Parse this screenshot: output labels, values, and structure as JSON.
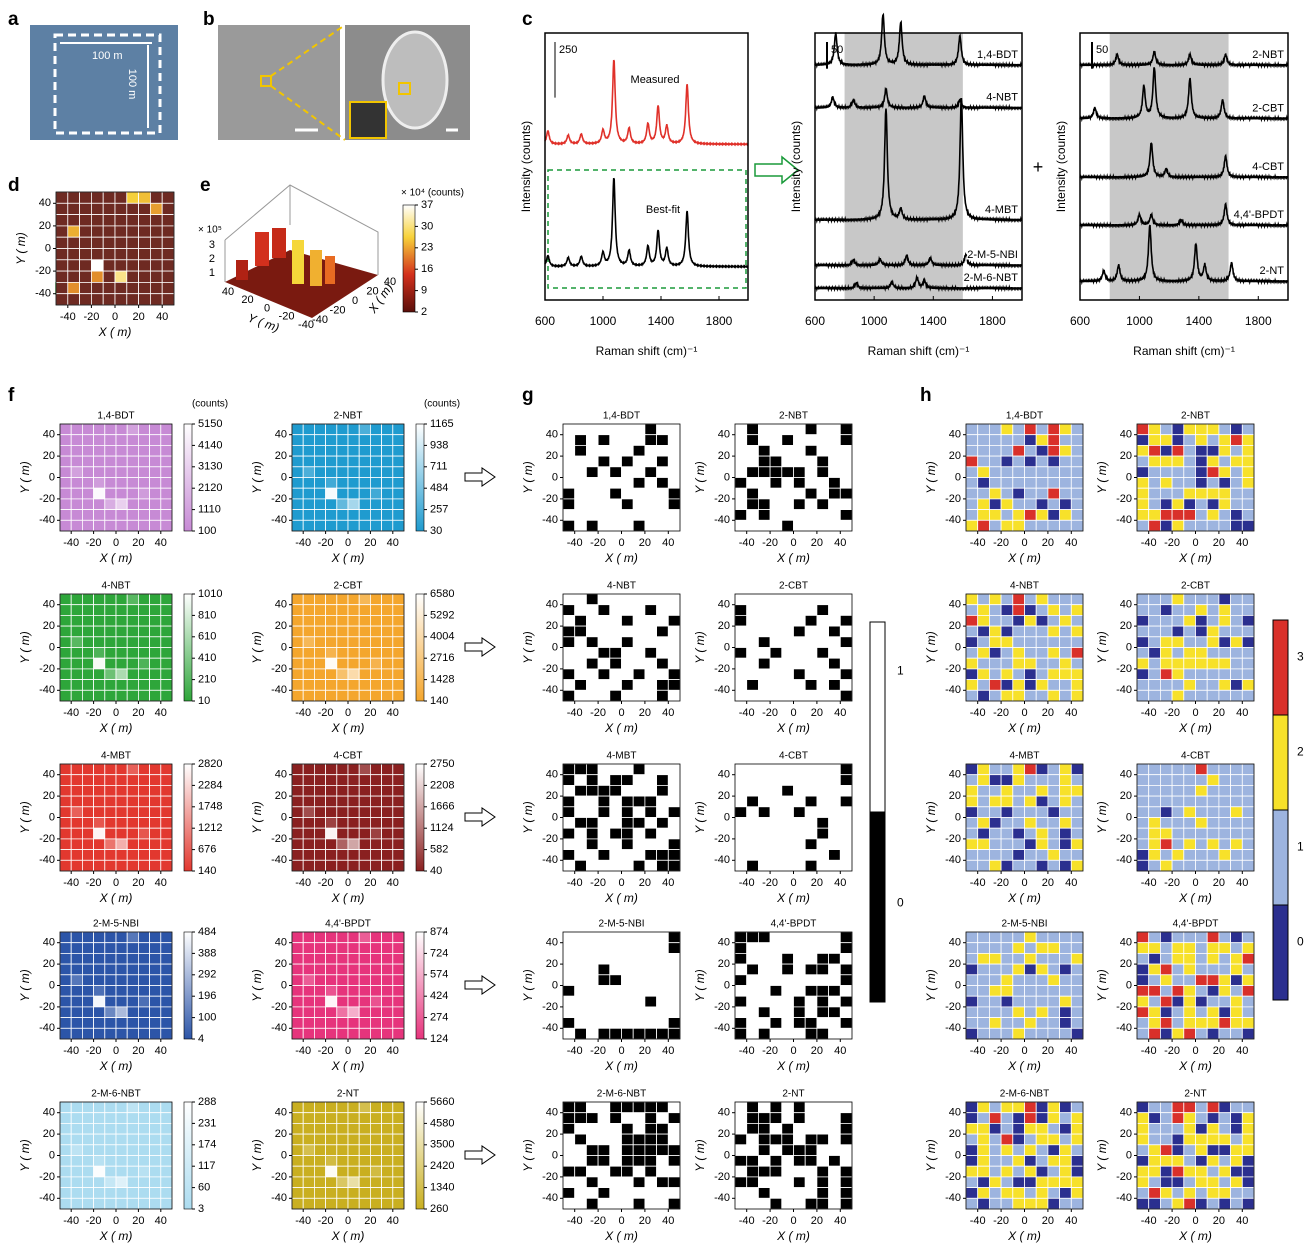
{
  "axes": {
    "ticks": [
      -40,
      -20,
      0,
      20,
      40
    ],
    "lim": [
      -50,
      50
    ],
    "xlabel": "X ( m)",
    "ylabel": "Y ( m)"
  },
  "a": {
    "label": "a",
    "scale_labels": [
      "100  m",
      "100  m"
    ]
  },
  "b": {
    "label": "b"
  },
  "c": {
    "label": "c",
    "xlabel": "Raman shift (cm)⁻¹",
    "ylabel": "Intensity (counts)",
    "xlim": [
      600,
      2000
    ],
    "xticks": [
      600,
      1000,
      1400,
      1800
    ],
    "plus": "+",
    "plots": [
      {
        "ylim": [
          0,
          1200
        ],
        "scale_bar": 250,
        "spectra": [
          {
            "name": "Measured",
            "color": "#e0312a",
            "offset": 700,
            "peaks": [
              [
                620,
                60
              ],
              [
                760,
                40
              ],
              [
                850,
                45
              ],
              [
                1000,
                60
              ],
              [
                1075,
                380
              ],
              [
                1180,
                70
              ],
              [
                1310,
                90
              ],
              [
                1380,
                170
              ],
              [
                1440,
                80
              ],
              [
                1580,
                270
              ]
            ]
          },
          {
            "name": "Best-fit",
            "color": "#000000",
            "offset": 150,
            "peaks": [
              [
                620,
                50
              ],
              [
                760,
                40
              ],
              [
                850,
                45
              ],
              [
                1000,
                60
              ],
              [
                1075,
                400
              ],
              [
                1180,
                70
              ],
              [
                1310,
                90
              ],
              [
                1380,
                160
              ],
              [
                1440,
                80
              ],
              [
                1580,
                250
              ]
            ]
          }
        ]
      },
      {
        "ylim": [
          0,
          500
        ],
        "scale_bar": 50,
        "band": [
          800,
          1600
        ],
        "spectra": [
          {
            "name": "1,4-BDT",
            "color": "#000000",
            "offset": 440,
            "peaks": [
              [
                740,
                60
              ],
              [
                1060,
                95
              ],
              [
                1180,
                80
              ],
              [
                1580,
                55
              ]
            ]
          },
          {
            "name": "4-NBT",
            "color": "#000000",
            "offset": 360,
            "peaks": [
              [
                720,
                20
              ],
              [
                860,
                15
              ],
              [
                1080,
                35
              ],
              [
                1340,
                22
              ],
              [
                1580,
                15
              ]
            ]
          },
          {
            "name": "4-MBT",
            "color": "#000000",
            "offset": 150,
            "peaks": [
              [
                1080,
                210
              ],
              [
                1180,
                20
              ],
              [
                1590,
                230
              ]
            ]
          },
          {
            "name": "2-M-5-NBI",
            "color": "#000000",
            "offset": 65,
            "peaks": [
              [
                860,
                10
              ],
              [
                1040,
                12
              ],
              [
                1220,
                18
              ],
              [
                1380,
                14
              ],
              [
                1620,
                20
              ]
            ]
          },
          {
            "name": "2-M-6-NBT",
            "color": "#000000",
            "offset": 22,
            "peaks": [
              [
                880,
                10
              ],
              [
                1120,
                12
              ],
              [
                1290,
                20
              ],
              [
                1340,
                14
              ]
            ]
          }
        ]
      },
      {
        "ylim": [
          0,
          500
        ],
        "scale_bar": 50,
        "band": [
          800,
          1600
        ],
        "spectra": [
          {
            "name": "2-NBT",
            "color": "#000000",
            "offset": 440,
            "peaks": [
              [
                850,
                20
              ],
              [
                1100,
                25
              ],
              [
                1340,
                20
              ],
              [
                1580,
                20
              ]
            ]
          },
          {
            "name": "2-CBT",
            "color": "#000000",
            "offset": 340,
            "peaks": [
              [
                700,
                20
              ],
              [
                1030,
                60
              ],
              [
                1100,
                95
              ],
              [
                1340,
                75
              ],
              [
                1560,
                35
              ]
            ]
          },
          {
            "name": "4-CBT",
            "color": "#000000",
            "offset": 230,
            "peaks": [
              [
                1080,
                65
              ],
              [
                1180,
                15
              ],
              [
                1580,
                40
              ]
            ]
          },
          {
            "name": "4,4'-BPDT",
            "color": "#000000",
            "offset": 140,
            "peaks": [
              [
                1000,
                20
              ],
              [
                1080,
                20
              ],
              [
                1280,
                10
              ],
              [
                1580,
                40
              ]
            ]
          },
          {
            "name": "2-NT",
            "color": "#000000",
            "offset": 35,
            "peaks": [
              [
                760,
                20
              ],
              [
                860,
                30
              ],
              [
                1070,
                105
              ],
              [
                1380,
                70
              ],
              [
                1440,
                30
              ],
              [
                1620,
                35
              ]
            ]
          }
        ]
      }
    ]
  },
  "d": {
    "label": "d",
    "hot_cells": [
      [
        3,
        6,
        1
      ],
      [
        5,
        7,
        0.7
      ],
      [
        6,
        0,
        0.5
      ],
      [
        7,
        0,
        0.45
      ],
      [
        1,
        3,
        0.4
      ],
      [
        8,
        1,
        0.35
      ],
      [
        3,
        7,
        0.3
      ],
      [
        1,
        8,
        0.3
      ]
    ]
  },
  "e": {
    "label": "e",
    "colorbar_title": "× 10⁴ (counts)",
    "cbar_ticks": [
      37,
      30,
      23,
      16,
      9,
      2
    ],
    "z_label": "× 10⁵",
    "zticks": [
      3,
      2,
      1
    ],
    "yticks": [
      40,
      20,
      0,
      -20,
      -40
    ],
    "xticks": [
      40,
      20,
      0,
      -20,
      -40
    ]
  },
  "f": {
    "label": "f",
    "cbar_unit": "(counts)",
    "hot_cells": [
      [
        3,
        6,
        0.95
      ],
      [
        5,
        7,
        0.6
      ],
      [
        4,
        7,
        0.3
      ],
      [
        1,
        4,
        0.2
      ],
      [
        6,
        0,
        0.2
      ],
      [
        3,
        5,
        0.15
      ],
      [
        7,
        6,
        0.15
      ]
    ],
    "maps": [
      {
        "name": "1,4-BDT",
        "color": "#c78ad5",
        "cbar_ticks": [
          5150,
          4140,
          3130,
          2120,
          1110,
          100
        ]
      },
      {
        "name": "2-NBT",
        "color": "#1f9bcf",
        "cbar_ticks": [
          1165,
          938,
          711,
          484,
          257,
          30
        ]
      },
      {
        "name": "4-NBT",
        "color": "#2ea63a",
        "cbar_ticks": [
          1010,
          810,
          610,
          410,
          210,
          10
        ]
      },
      {
        "name": "2-CBT",
        "color": "#f4a62d",
        "cbar_ticks": [
          6580,
          5292,
          4004,
          2716,
          1428,
          140
        ]
      },
      {
        "name": "4-MBT",
        "color": "#e2382f",
        "cbar_ticks": [
          2820,
          2284,
          1748,
          1212,
          676,
          140
        ]
      },
      {
        "name": "4-CBT",
        "color": "#8a2020",
        "cbar_ticks": [
          2750,
          2208,
          1666,
          1124,
          582,
          40
        ]
      },
      {
        "name": "2-M-5-NBI",
        "color": "#2c55a8",
        "cbar_ticks": [
          484,
          388,
          292,
          196,
          100,
          4
        ]
      },
      {
        "name": "4,4'-BPDT",
        "color": "#e6347c",
        "cbar_ticks": [
          874,
          724,
          574,
          424,
          274,
          124
        ]
      },
      {
        "name": "2-M-6-NBT",
        "color": "#acdcf0",
        "cbar_ticks": [
          288,
          231,
          174,
          117,
          60,
          3
        ]
      },
      {
        "name": "2-NT",
        "color": "#c9af20",
        "cbar_ticks": [
          5660,
          4580,
          3500,
          2420,
          1340,
          260
        ]
      }
    ]
  },
  "g": {
    "label": "g",
    "cbar_ticks": [
      1,
      0
    ],
    "colors": [
      "#000000",
      "#ffffff"
    ],
    "maps": [
      {
        "name": "1,4-BDT",
        "rows": [
          "1111111011",
          "1010111001",
          "1011110111",
          "1110101101",
          "1101011011",
          "1111110101",
          "0111011110",
          "0111101110",
          "1111111111",
          "0101110111"
        ]
      },
      {
        "name": "2-NBT",
        "rows": [
          "1011110110",
          "1011011110",
          "1101110111",
          "1100111011",
          "1000001011",
          "0110101101",
          "1011110100",
          "1001101011",
          "0101111110",
          "1111011111"
        ]
      },
      {
        "name": "4-NBT",
        "rows": [
          "1101111111",
          "0110111011",
          "1011101110",
          "0011111101",
          "0101101111",
          "1110011011",
          "1101011101",
          "0110110110",
          "1011101100",
          "0111011101"
        ]
      },
      {
        "name": "2-CBT",
        "rows": [
          "1111111111",
          "0111111011",
          "0111110110",
          "1111101101",
          "1101111110",
          "0110111011",
          "1101111101",
          "1111101110",
          "1011110101",
          "1111111110"
        ]
      },
      {
        "name": "4-MBT",
        "rows": [
          "0001110111",
          "0101001101",
          "1000011101",
          "0110100011",
          "0110101010",
          "1001100101",
          "0101001011",
          "1101101110",
          "0110111000",
          "1011110100"
        ]
      },
      {
        "name": "4-CBT",
        "rows": [
          "1111111110",
          "1111111110",
          "1111011111",
          "1011110110",
          "0101101111",
          "1111111011",
          "1111111011",
          "1111110111",
          "1111111101",
          "1011110111"
        ]
      },
      {
        "name": "2-M-5-NBI",
        "rows": [
          "1111111110",
          "1111111110",
          "1111111111",
          "1110111111",
          "1110011111",
          "0111111111",
          "1111111011",
          "1111111111",
          "0111111110",
          "1010000000"
        ]
      },
      {
        "name": "4,4'-BPDT",
        "rows": [
          "0001111110",
          "0111111110",
          "0111011001",
          "1011010010",
          "0111111110",
          "1110110001",
          "0111101010",
          "1101101001",
          "0110100110",
          "0101110011"
        ]
      },
      {
        "name": "2-M-6-NBT",
        "rows": [
          "0011000001",
          "0001011010",
          "0111101001",
          "1011100001",
          "1100100000",
          "1100100010",
          "0011001011",
          "1101110100",
          "0110111111",
          "1101110110"
        ]
      },
      {
        "name": "2-NT",
        "rows": [
          "1010101111",
          "1000101110",
          "1001011110",
          "0100010010",
          "1101000111",
          "0010100101",
          "1000111010",
          "0011101010",
          "1101111010",
          "1110110010"
        ]
      }
    ]
  },
  "h": {
    "label": "h",
    "cbar_ticks": [
      3,
      2,
      1,
      0
    ],
    "colors": [
      "#2b2f8f",
      "#9db4df",
      "#f7e12a",
      "#d9302a"
    ],
    "maps": [
      {
        "name": "1,4-BDT",
        "rows": [
          "1112131321",
          "1111102311",
          "1111310321",
          "3110101011",
          "1211111111",
          "1011111111",
          "1121011311",
          "1202110101",
          "1221232021",
          "2312211111"
        ]
      },
      {
        "name": "2-NBT",
        "rows": [
          "3210222101",
          "0220121232",
          "2303100212",
          "1222102122",
          "0111103212",
          "2121101012",
          "2111222211",
          "2102010211",
          "2233312101",
          "1302111100"
        ]
      },
      {
        "name": "4-NBT",
        "rows": [
          "2121312111",
          "1210301212",
          "3211020121",
          "1020111212",
          "0122111111",
          "1201211213",
          "2111221121",
          "0212101222",
          "2130202112",
          "1012211212"
        ]
      },
      {
        "name": "2-CBT",
        "rows": [
          "1112111011",
          "1101121211",
          "0111201210",
          "1110102111",
          "0122112020",
          "1021221111",
          "2122222211",
          "0132111111",
          "1111211202",
          "1112111111"
        ]
      },
      {
        "name": "4-MBT",
        "rows": [
          "0211230120",
          "1200211121",
          "2112112122",
          "2122120121",
          "0110111011",
          "1201121121",
          "1011012101",
          "2211102102",
          "1111011211",
          "1120110102"
        ]
      },
      {
        "name": "4-CBT",
        "rows": [
          "1111131111",
          "1111112111",
          "1111121111",
          "1111111111",
          "1101211121",
          "1211121111",
          "1221111111",
          "1231212121",
          "0212111211",
          "0121111111"
        ]
      },
      {
        "name": "2-M-5-NBI",
        "rows": [
          "1111121111",
          "1111212211",
          "1221121112",
          "0111202101",
          "1112111211",
          "1122111111",
          "0110111121",
          "1111212101",
          "1121121101",
          "0111211110"
        ]
      },
      {
        "name": "4,4'-BPDT",
        "rows": [
          "3101113101",
          "2212212212",
          "1012212123",
          "0231211121",
          "0121133202",
          "3313210213",
          "2130201121",
          "3201212021",
          "1231222322",
          "1302310110"
        ]
      },
      {
        "name": "2-M-6-NBT",
        "rows": [
          "0212230201",
          "0131030212",
          "2201022102",
          "1213012212",
          "0212121021",
          "0211201220",
          "2212120120",
          "1021002222",
          "0212212102",
          "1011222011"
        ]
      },
      {
        "name": "2-NT",
        "rows": [
          "0113313011",
          "2013210102",
          "2111202102",
          "2110222212",
          "1230120022",
          "0222102120",
          "2203221200",
          "2100122120",
          "1321212211",
          "0012301010"
        ]
      }
    ]
  }
}
